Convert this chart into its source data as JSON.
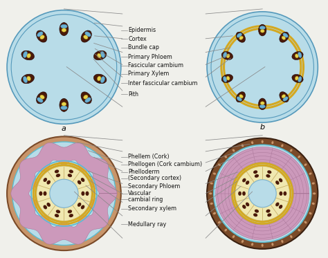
{
  "bg_color": "#f0f0eb",
  "light_blue": "#b8dce8",
  "gold": "#d4a820",
  "dark_maroon": "#4a1a0a",
  "bundle_blue": "#6ab0d4",
  "bundle_yellow": "#e8d44d",
  "pink_phloem": "#cc99bb",
  "xylem_yellow": "#f0e8b0",
  "cork_tan": "#c8956a",
  "cork_dark": "#7a4a28",
  "teal": "#5bbcd0",
  "line_color": "#888888",
  "text_color": "#111111",
  "top_labels": [
    "Epidermis",
    "Cortex",
    "Bundle cap",
    "Primary Phloem",
    "Fascicular cambium",
    "Primary Xylem",
    "Inter fascicular cambium",
    "Pith"
  ],
  "bottom_labels": [
    "Phellem (Cork)",
    "Phellogen (Cork cambium)",
    "Phelloderm",
    "(Secondary cortex)",
    "Secondary Phloem",
    "Vascular",
    "cambial ring",
    "Secondary xylem",
    "Medullary ray"
  ]
}
